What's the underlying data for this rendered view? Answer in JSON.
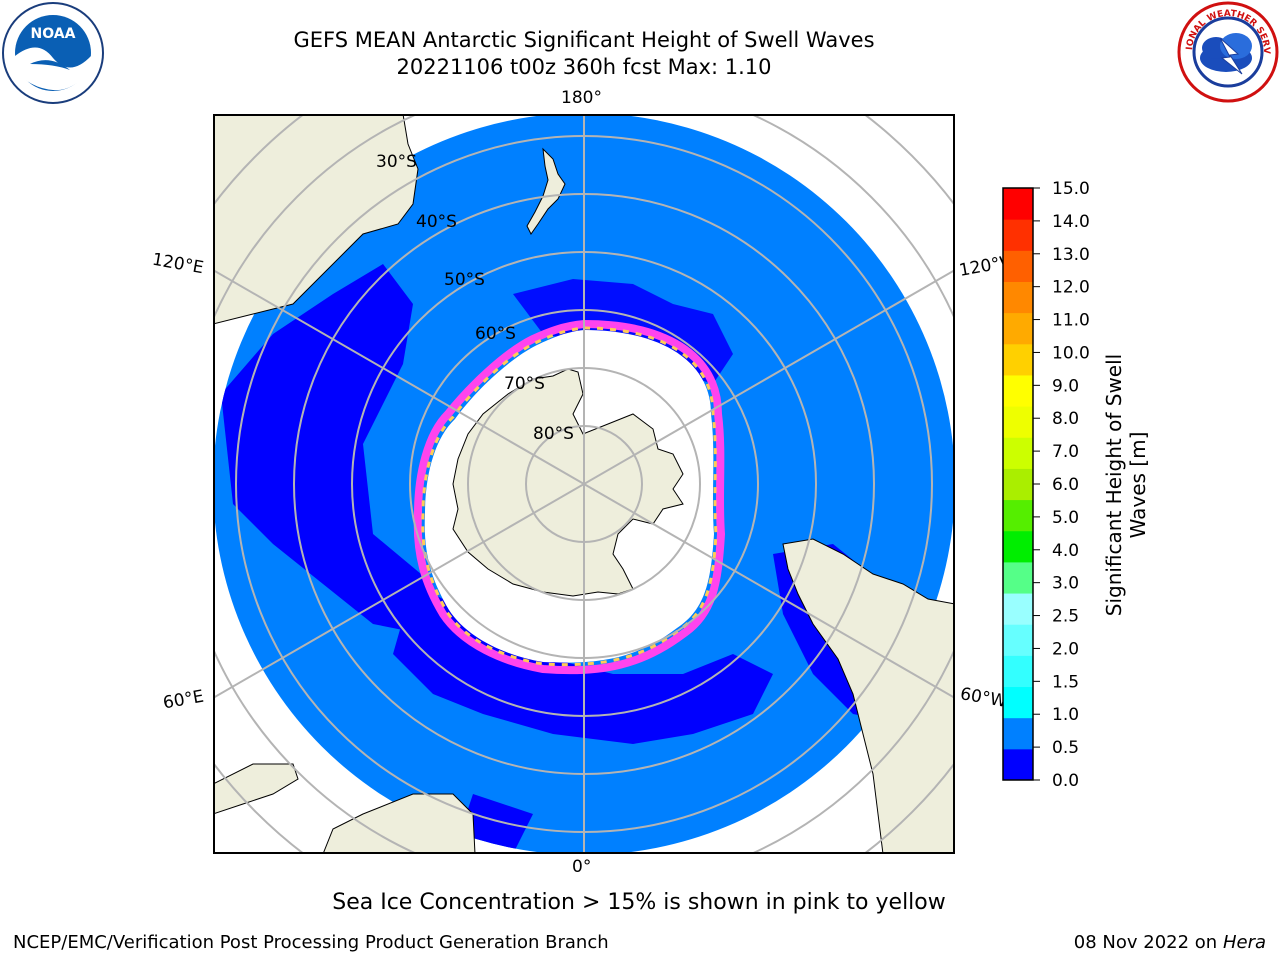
{
  "header": {
    "title_line1": "GEFS MEAN Antarctic Significant Height of Swell Waves",
    "title_line2": "20221106 t00z 360h fcst   Max: 1.10"
  },
  "logos": {
    "left": {
      "name": "noaa-logo",
      "text": "NOAA",
      "ring_text": "NATIONAL OCEANIC AND ATMOSPHERIC ADMINISTRATION · U.S. DEPARTMENT OF COMMERCE"
    },
    "right": {
      "name": "nws-logo",
      "ring_text": "NATIONAL WEATHER SERVICE"
    }
  },
  "map": {
    "projection": "south-polar-stereographic",
    "longitude_labels": [
      "180°",
      "120°E",
      "120°W",
      "60°E",
      "60°W",
      "0°"
    ],
    "latitude_labels": [
      "30°S",
      "40°S",
      "50°S",
      "60°S",
      "70°S",
      "80°S"
    ],
    "colors": {
      "swell_0_0.5": "#0000ff",
      "swell_0.5_1.0": "#0080ff",
      "land": "#eeeedc",
      "ice": "#ffffff",
      "ice_edge_pink": "#ff44ee",
      "ice_edge_yellow": "#ffcc55",
      "graticule": "#b4b4b4"
    }
  },
  "colorbar": {
    "title": "Significant Height of Swell Waves [m]",
    "ticks": [
      "0.0",
      "0.5",
      "1.0",
      "1.5",
      "2.0",
      "2.5",
      "3.0",
      "4.0",
      "5.0",
      "6.0",
      "7.0",
      "8.0",
      "9.0",
      "10.0",
      "11.0",
      "12.0",
      "13.0",
      "14.0",
      "15.0"
    ],
    "colors": [
      "#0000ff",
      "#0080ff",
      "#00ffff",
      "#33ffff",
      "#66ffff",
      "#99ffff",
      "#55ff88",
      "#00ee00",
      "#55ee00",
      "#aaee00",
      "#ccff00",
      "#eeff00",
      "#ffff00",
      "#ffd000",
      "#ffaa00",
      "#ff8800",
      "#ff6000",
      "#ff3000",
      "#ff0000"
    ]
  },
  "footer": {
    "caption": "Sea Ice Concentration > 15% is shown in pink to yellow",
    "credit": "NCEP/EMC/Verification Post Processing Product Generation Branch",
    "date": "08 Nov 2022 on",
    "machine": "Hera"
  }
}
